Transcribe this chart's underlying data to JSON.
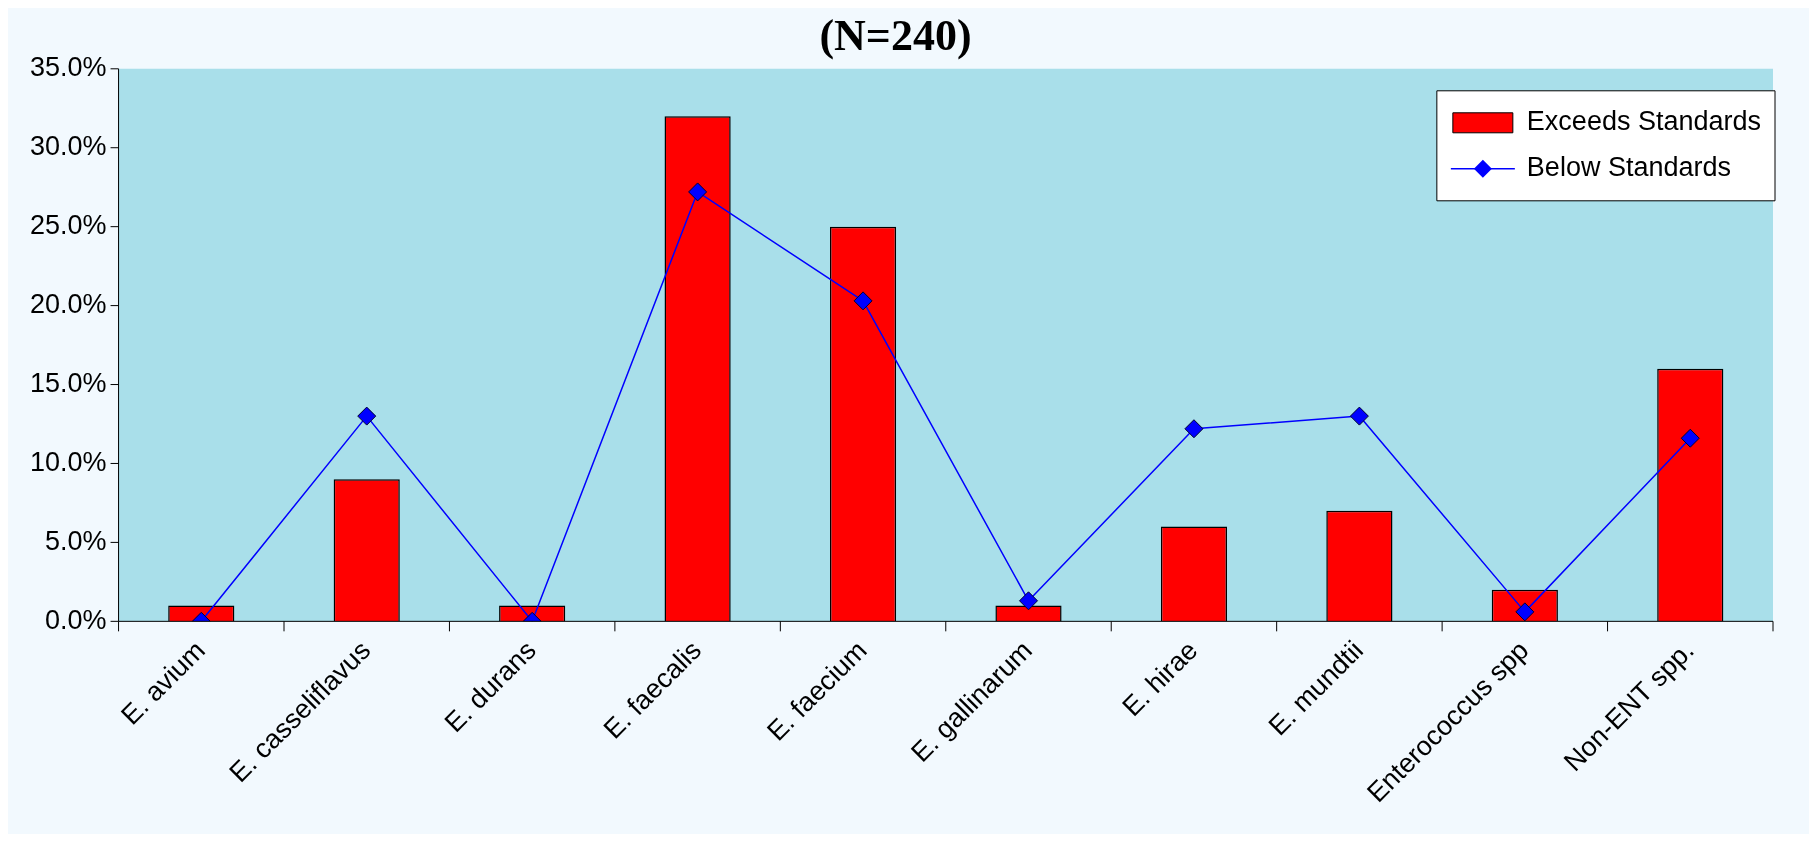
{
  "chart_data": {
    "type": "bar",
    "title": "(N=240)",
    "categories": [
      "E. avium",
      "E. casseliflavus",
      "E. durans",
      "E. faecalis",
      "E. faecium",
      "E. gallinarum",
      "E. hirae",
      "E. mundtii",
      "Enterococcus spp",
      "Non-ENT spp."
    ],
    "series": [
      {
        "name": "Exceeds Standards",
        "color": "#ff0000",
        "values": [
          1,
          9,
          1,
          32,
          25,
          1,
          6,
          7,
          2,
          16
        ]
      },
      {
        "name": "Below Standards",
        "type": "line",
        "color": "#0000ff",
        "values": [
          0,
          13,
          0,
          27.2,
          20.3,
          1.3,
          12.2,
          13,
          0.6,
          11.6
        ]
      }
    ],
    "ylim": [
      0,
      35
    ],
    "yticks": [
      {
        "value": 0,
        "label": "0.0%"
      },
      {
        "value": 5,
        "label": "5.0%"
      },
      {
        "value": 10,
        "label": "10.0%"
      },
      {
        "value": 15,
        "label": "15.0%"
      },
      {
        "value": 20,
        "label": "20.0%"
      },
      {
        "value": 25,
        "label": "25.0%"
      },
      {
        "value": 30,
        "label": "30.0%"
      },
      {
        "value": 35,
        "label": "35.0%"
      }
    ],
    "grid": false,
    "legend": "top right",
    "marker": "diamond",
    "line_style": "solid"
  }
}
